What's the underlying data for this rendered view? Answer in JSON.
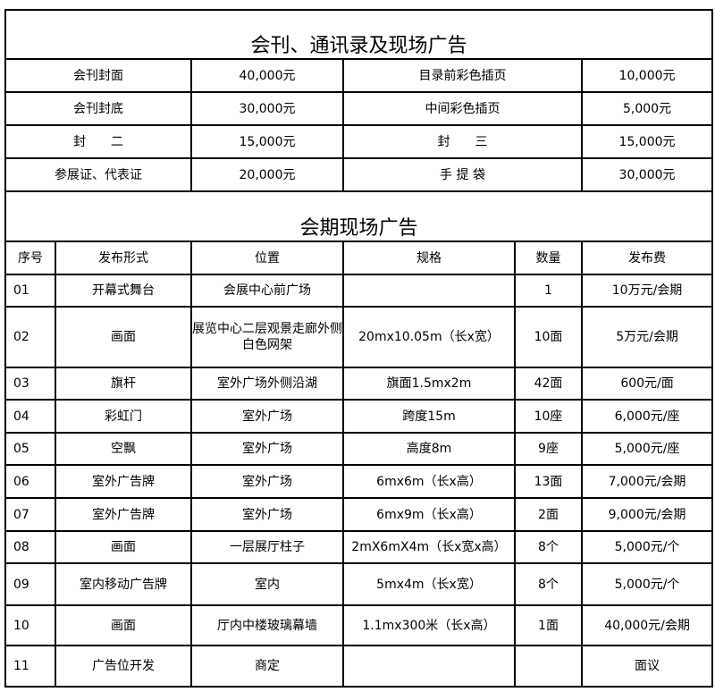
{
  "title": "会刊、通讯录及现场广告",
  "pricing": [
    {
      "item_a": "会刊封面",
      "price_a": "40,000元",
      "item_b": "目录前彩色插页",
      "price_b": "10,000元"
    },
    {
      "item_a": "会刊封底",
      "price_a": "30,000元",
      "item_b": "中间彩色插页",
      "price_b": "5,000元"
    },
    {
      "item_a": "封　　二",
      "price_a": "15,000元",
      "item_b": "封　　三",
      "price_b": "15,000元"
    },
    {
      "item_a": "参展证、代表证",
      "price_a": "20,000元",
      "item_b": "手 提 袋",
      "price_b": "30,000元"
    }
  ],
  "onsite_title": "会期现场广告",
  "columns": [
    "序号",
    "发布形式",
    "位置",
    "规格",
    "数量",
    "发布费"
  ],
  "rows": [
    [
      "01",
      "开幕式舞台",
      "会展中心前广场",
      "",
      "1",
      "10万元/会期"
    ],
    [
      "02",
      "画面",
      "展览中心二层观景走廊外侧白色网架",
      "20mx10.05m（长x宽）",
      "10面",
      "5万元/会期"
    ],
    [
      "03",
      "旗杆",
      "室外广场外侧沿湖",
      "旗面1.5mx2m",
      "42面",
      "600元/面"
    ],
    [
      "04",
      "彩虹门",
      "室外广场",
      "跨度15m",
      "10座",
      "6,000元/座"
    ],
    [
      "05",
      "空飘",
      "室外广场",
      "高度8m",
      "9座",
      "5,000元/座"
    ],
    [
      "06",
      "室外广告牌",
      "室外广场",
      "6mx6m（长x高）",
      "13面",
      "7,000元/会期"
    ],
    [
      "07",
      "室外广告牌",
      "室外广场",
      "6mx9m（长x高）",
      "2面",
      "9,000元/会期"
    ],
    [
      "08",
      "画面",
      "一层展厅柱子",
      "2mX6mX4m（长x宽x高）",
      "8个",
      "5,000元/个"
    ],
    [
      "09",
      "室内移动广告牌",
      "室内",
      "5mx4m（长x宽）",
      "8个",
      "5,000元/个"
    ],
    [
      "10",
      "画面",
      "厅内中楼玻璃幕墙",
      "1.1mx300米（长x高）",
      "1面",
      "40,000元/会期"
    ],
    [
      "11",
      "广告位开发",
      "商定",
      "",
      "",
      "面议"
    ]
  ]
}
